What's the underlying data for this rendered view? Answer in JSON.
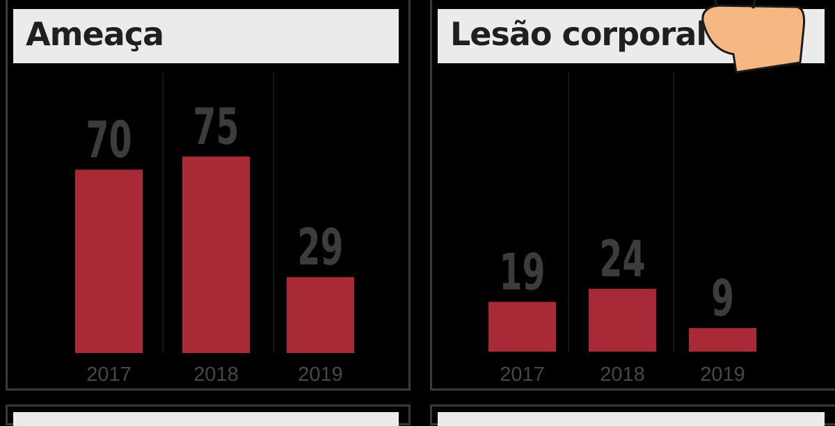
{
  "chart_data": [
    {
      "type": "bar",
      "title": "Ameaça",
      "categories": [
        "2017",
        "2018",
        "2019"
      ],
      "values": [
        70,
        75,
        29
      ],
      "ylim": [
        0,
        75
      ],
      "grid": false,
      "colors": {
        "bar": "#a82a36",
        "title_bg": "#ebebeb"
      }
    },
    {
      "type": "bar",
      "title": "Lesão corporal",
      "categories": [
        "2017",
        "2018",
        "2019"
      ],
      "values": [
        19,
        24,
        9
      ],
      "ylim": [
        0,
        75
      ],
      "grid": false,
      "colors": {
        "bar": "#a82a36",
        "title_bg": "#ebebeb"
      }
    }
  ]
}
